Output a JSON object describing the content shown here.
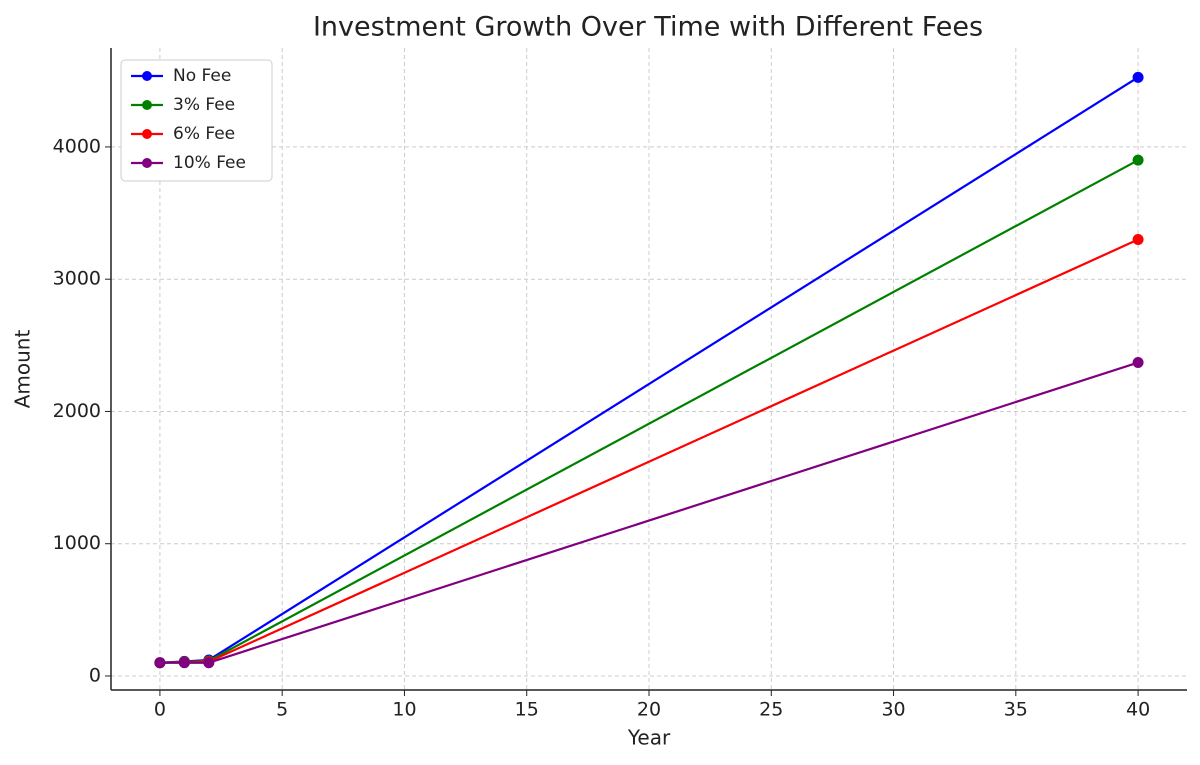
{
  "chart_data": {
    "type": "line",
    "title": "Investment Growth Over Time with Different Fees",
    "x_label": "Year",
    "y_label": "Amount",
    "x": [
      0,
      1,
      2,
      40
    ],
    "series": [
      {
        "name": "No Fee",
        "color": "#0000ff",
        "values": [
          100,
          110,
          121,
          4526
        ]
      },
      {
        "name": "3% Fee",
        "color": "#008000",
        "values": [
          100,
          107,
          114,
          3900
        ]
      },
      {
        "name": "6% Fee",
        "color": "#ff0000",
        "values": [
          100,
          104,
          108,
          3300
        ]
      },
      {
        "name": "10% Fee",
        "color": "#800080",
        "values": [
          100,
          100,
          100,
          2370
        ]
      }
    ],
    "xlim": [
      -2,
      42
    ],
    "xticks": [
      0,
      5,
      10,
      15,
      20,
      25,
      30,
      35,
      40
    ],
    "ylim": [
      -106,
      4748
    ],
    "yticks": [
      0,
      1000,
      2000,
      3000,
      4000
    ],
    "grid": true,
    "legend": "upper-left"
  }
}
